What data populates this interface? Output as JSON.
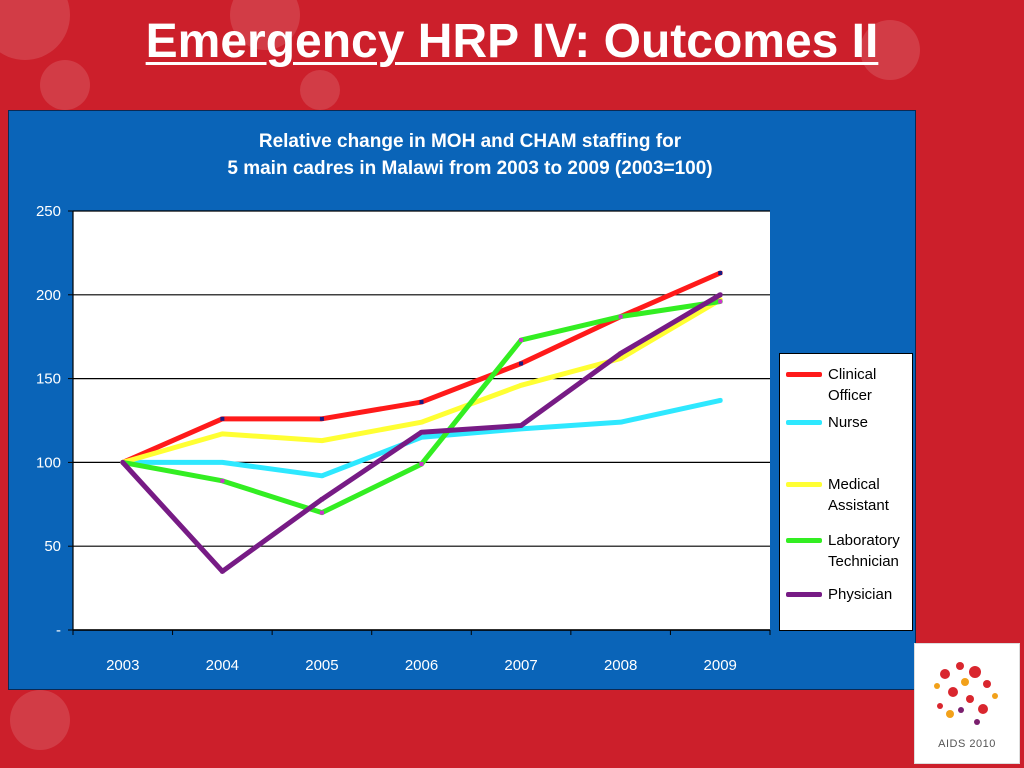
{
  "slide": {
    "title": "Emergency HRP IV: Outcomes II",
    "logo_text": "AIDS 2010"
  },
  "colors": {
    "background": "#cc1f2b",
    "panel": "#0a64b8",
    "plot_area": "#ffffff"
  },
  "chart_data": {
    "type": "line",
    "title": "Relative change in MOH and CHAM staffing for",
    "subtitle": "5 main cadres in Malawi from 2003  to 2009 (2003=100)",
    "x": [
      "2003",
      "2004",
      "2005",
      "2006",
      "2007",
      "2008",
      "2009"
    ],
    "ylim": [
      0,
      250
    ],
    "yticks": [
      0,
      50,
      100,
      150,
      200,
      250
    ],
    "ytick_labels": [
      "-",
      "50",
      "100",
      "150",
      "200",
      "250"
    ],
    "grid": true,
    "legend_position": "right",
    "series": [
      {
        "name": "Clinical Officer",
        "legend_lines": [
          "Clinical",
          "Officer"
        ],
        "color": "#ff1a1a",
        "marker_color": "#1a1a80",
        "values": [
          100,
          126,
          126,
          136,
          159,
          187,
          213
        ]
      },
      {
        "name": "Nurse",
        "legend_lines": [
          "Nurse"
        ],
        "color": "#2ee8ff",
        "marker_color": "#2ee8ff",
        "values": [
          100,
          100,
          92,
          115,
          120,
          124,
          137
        ]
      },
      {
        "name": "Medical Assistant",
        "legend_lines": [
          "Medical",
          "Assistant"
        ],
        "color": "#ffff33",
        "marker_color": "#ffff33",
        "values": [
          100,
          117,
          113,
          124,
          146,
          162,
          197
        ]
      },
      {
        "name": "Laboratory Technician",
        "legend_lines": [
          "Laboratory",
          "Technician"
        ],
        "color": "#33ee22",
        "marker_color": "#cc33cc",
        "values": [
          100,
          89,
          70,
          99,
          173,
          187,
          196
        ]
      },
      {
        "name": "Physician",
        "legend_lines": [
          "Physician"
        ],
        "color": "#771b85",
        "marker_color": "#771b85",
        "values": [
          100,
          35,
          78,
          118,
          122,
          165,
          200
        ]
      }
    ]
  }
}
